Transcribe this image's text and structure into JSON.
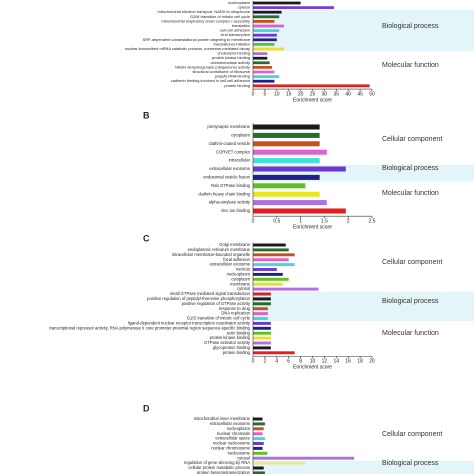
{
  "chart_data": [
    {
      "type": "bar",
      "orientation": "horizontal",
      "xlabel": "Enrichment score",
      "xlim": [
        0,
        50
      ],
      "xticks": [
        0,
        5,
        10,
        15,
        20,
        25,
        30,
        35,
        40,
        45,
        50
      ],
      "groups": [
        {
          "categories": [
            "nucleoplasm",
            "cytosol"
          ],
          "values": [
            20,
            34
          ],
          "colors": [
            "#1a1a1a",
            "#7a3ad8"
          ]
        },
        {
          "label": "Biological process",
          "background": "#e3f5f8",
          "categories": [
            "mitochondrial electron transport, NADH to ubiquinone",
            "G2/M transition of mitotic cell cycle",
            "mitochondrial respiratory chain complex I assembly",
            "translation",
            "cell-cell adhesion",
            "viral transcription",
            "SRP-dependent cotranslational protein targeting to membrane",
            "translational initiation",
            "nuclear-transcribed mRNA catabolic process, nonsense-mediated decay"
          ],
          "values": [
            12,
            11,
            9,
            13,
            11,
            10,
            10,
            9,
            13
          ],
          "colors": [
            "#1a1a1a",
            "#2a6a2a",
            "#c8501e",
            "#e060d0",
            "#40d8d8",
            "#6a3ad0",
            "#20208a",
            "#60c020",
            "#e8e020"
          ]
        },
        {
          "label": "Molecular function",
          "categories": [
            "cholesterol binding",
            "protein kinase binding",
            "oxidoreductase activity",
            "NADH dehydrogenase (ubiquinone) activity",
            "structural constituent of ribosome",
            "poly(A) RNA binding",
            "cadherin binding involved in cell-cell adhesion",
            "protein binding"
          ],
          "values": [
            6,
            6,
            7,
            8,
            9,
            11,
            9,
            49
          ],
          "colors": [
            "#b070e0",
            "#1a1a1a",
            "#2a6a2a",
            "#c8501e",
            "#e060d0",
            "#40d8d8",
            "#20208a",
            "#e02020"
          ]
        }
      ]
    },
    {
      "type": "bar",
      "orientation": "horizontal",
      "panel": "B",
      "xlabel": "Enrichment score",
      "xlim": [
        0,
        2.5
      ],
      "xticks": [
        0,
        0.5,
        1,
        1.5,
        2,
        2.5
      ],
      "groups": [
        {
          "label": "Cellular component",
          "categories": [
            "presynaptic membrane",
            "cytoplasm",
            "clathrin-coated vesicle",
            "CORVET complex",
            "intracellular"
          ],
          "values": [
            1.4,
            1.4,
            1.4,
            1.55,
            1.4
          ],
          "colors": [
            "#1a1a1a",
            "#2a6a2a",
            "#c8501e",
            "#e060d0",
            "#40e0e0"
          ]
        },
        {
          "label": "Biological process",
          "background": "#e3f5f8",
          "categories": [
            "extracellular exosome",
            "endosomal vesicle fusion"
          ],
          "values": [
            1.95,
            1.4
          ],
          "colors": [
            "#6a3ad0",
            "#20208a"
          ]
        },
        {
          "label": "Molecular function",
          "categories": [
            "Rab GTPase binding",
            "clathrin heavy chain binding",
            "alpha-amylase activity",
            "zinc ion binding"
          ],
          "values": [
            1.1,
            1.4,
            1.55,
            1.95
          ],
          "colors": [
            "#60c020",
            "#e8e820",
            "#b070e0",
            "#e02020"
          ]
        }
      ]
    },
    {
      "type": "bar",
      "orientation": "horizontal",
      "panel": "C",
      "xlabel": "Enrichment score",
      "xlim": [
        0,
        20
      ],
      "xticks": [
        0,
        2,
        4,
        6,
        8,
        10,
        12,
        14,
        16,
        18,
        20
      ],
      "groups": [
        {
          "label": "Cellular component",
          "categories": [
            "Golgi membrane",
            "endoplasmic reticulum membrane",
            "intracellular membrane-bounded organelle",
            "focal adhesion",
            "extracellular exosome",
            "nucleus",
            "nucleoplasm",
            "cytoplasm",
            "membrane",
            "cytosol"
          ],
          "values": [
            5.5,
            6,
            7,
            6,
            7,
            4,
            5,
            6,
            5,
            11
          ],
          "colors": [
            "#1a1a1a",
            "#2a6a2a",
            "#c8501e",
            "#e060d0",
            "#40d8d8",
            "#6a3ad0",
            "#20208a",
            "#60c020",
            "#e8e020",
            "#b070e0"
          ]
        },
        {
          "label": "Biological process",
          "background": "#e3f5f8",
          "categories": [
            "small GTPase mediated signal transduction",
            "positive regulation of peptidyl-threonine phosphorylation",
            "positive regulation of GTPase activity",
            "response to drug",
            "DNA replication",
            "G1/S transition of mitotic cell cycle"
          ],
          "values": [
            3,
            3,
            3,
            2.5,
            2.5,
            2.5
          ],
          "colors": [
            "#e02020",
            "#1a1a1a",
            "#2a6a2a",
            "#c8501e",
            "#e060d0",
            "#40d8d8"
          ]
        },
        {
          "label": "Molecular function",
          "categories": [
            "ligand-dependent nuclear receptor transcription coactivator activity",
            "transcriptional repressor activity, RNA polymerase II core promoter proximal region sequence-specific binding",
            "actin binding",
            "protein kinase binding",
            "GTPase activator activity",
            "glycoprotein binding",
            "protein binding"
          ],
          "values": [
            3,
            3,
            3,
            3,
            3,
            3,
            7
          ],
          "colors": [
            "#6a3ad0",
            "#20208a",
            "#60c020",
            "#e8e020",
            "#b070e0",
            "#1a1a1a",
            "#e02020"
          ]
        }
      ]
    },
    {
      "type": "bar",
      "orientation": "horizontal",
      "panel": "D",
      "xlim": [
        0,
        100
      ],
      "groups": [
        {
          "label": "Cellular component",
          "categories": [
            "mitochondrial inner membrane",
            "extracellular exosome",
            "nucleoplasm",
            "nuclear chromatin",
            "extracellular space",
            "nuclear nucleosome",
            "nuclear chromosome",
            "nucleosome",
            "cytosol"
          ],
          "values": [
            8,
            10,
            9,
            8,
            10,
            9,
            8,
            12,
            85
          ],
          "colors": [
            "#1a1a1a",
            "#2a6a2a",
            "#c8501e",
            "#e060d0",
            "#40d8d8",
            "#6a3ad0",
            "#20208a",
            "#60c020",
            "#b070e0"
          ]
        },
        {
          "label": "Biological process",
          "background": "#e3f5f8",
          "categories": [
            "regulation of gene silencing by RNA",
            "cellular protein metabolic process",
            "protein heterotetramerization"
          ],
          "values": [
            44,
            9,
            10
          ],
          "colors": [
            "#e8e8a0",
            "#1a1a1a",
            "#2a6a2a"
          ]
        }
      ]
    }
  ]
}
